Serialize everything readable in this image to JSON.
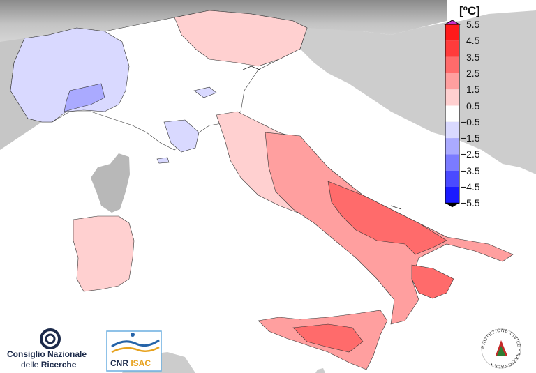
{
  "colorbar": {
    "title": "[ºC]",
    "tick_labels": [
      "5.5",
      "4.5",
      "3.5",
      "2.5",
      "1.5",
      "0.5",
      "−0.5",
      "−1.5",
      "−2.5",
      "−3.5",
      "−4.5",
      "−5.5"
    ],
    "bins": [
      {
        "range": "4.5 to 5.5",
        "color": "#ff1a1a"
      },
      {
        "range": "3.5 to 4.5",
        "color": "#ff3b3b"
      },
      {
        "range": "2.5 to 3.5",
        "color": "#ff6b6b"
      },
      {
        "range": "1.5 to 2.5",
        "color": "#ff9f9f"
      },
      {
        "range": "0.5 to 1.5",
        "color": "#ffd0d0"
      },
      {
        "range": "-0.5 to 0.5",
        "color": "#ffffff"
      },
      {
        "range": "-1.5 to -0.5",
        "color": "#d9d9ff"
      },
      {
        "range": "-2.5 to -1.5",
        "color": "#aaaaff"
      },
      {
        "range": "-3.5 to -2.5",
        "color": "#7b7bff"
      },
      {
        "range": "-4.5 to -3.5",
        "color": "#4a4aff"
      },
      {
        "range": "-5.5 to -4.5",
        "color": "#1a1aff"
      }
    ],
    "overflow_top_color": "#c832c8",
    "overflow_bottom_color": "#000000"
  },
  "logos": {
    "cnr_line1": "Consiglio Nazionale",
    "cnr_line2_a": "delle ",
    "cnr_line2_b": "Ricerche",
    "isac_a": "CNR",
    "isac_b": "ISAC",
    "protezione_ring": "PROTEZIONE CIVILE • NAZIONALE •"
  },
  "colors": {
    "sea": "#ffffff",
    "foreign_land": "#bdbdbd",
    "relief_dark": "#7a7a7a",
    "anomaly_cold_light": "#d9d9ff",
    "anomaly_cold_mid": "#aaaaff",
    "anomaly_warm_light": "#ffd0d0",
    "anomaly_warm_mid": "#ff9f9f",
    "anomaly_warm_strong": "#ff6b6b",
    "anomaly_warm_max": "#ff3b3b"
  }
}
